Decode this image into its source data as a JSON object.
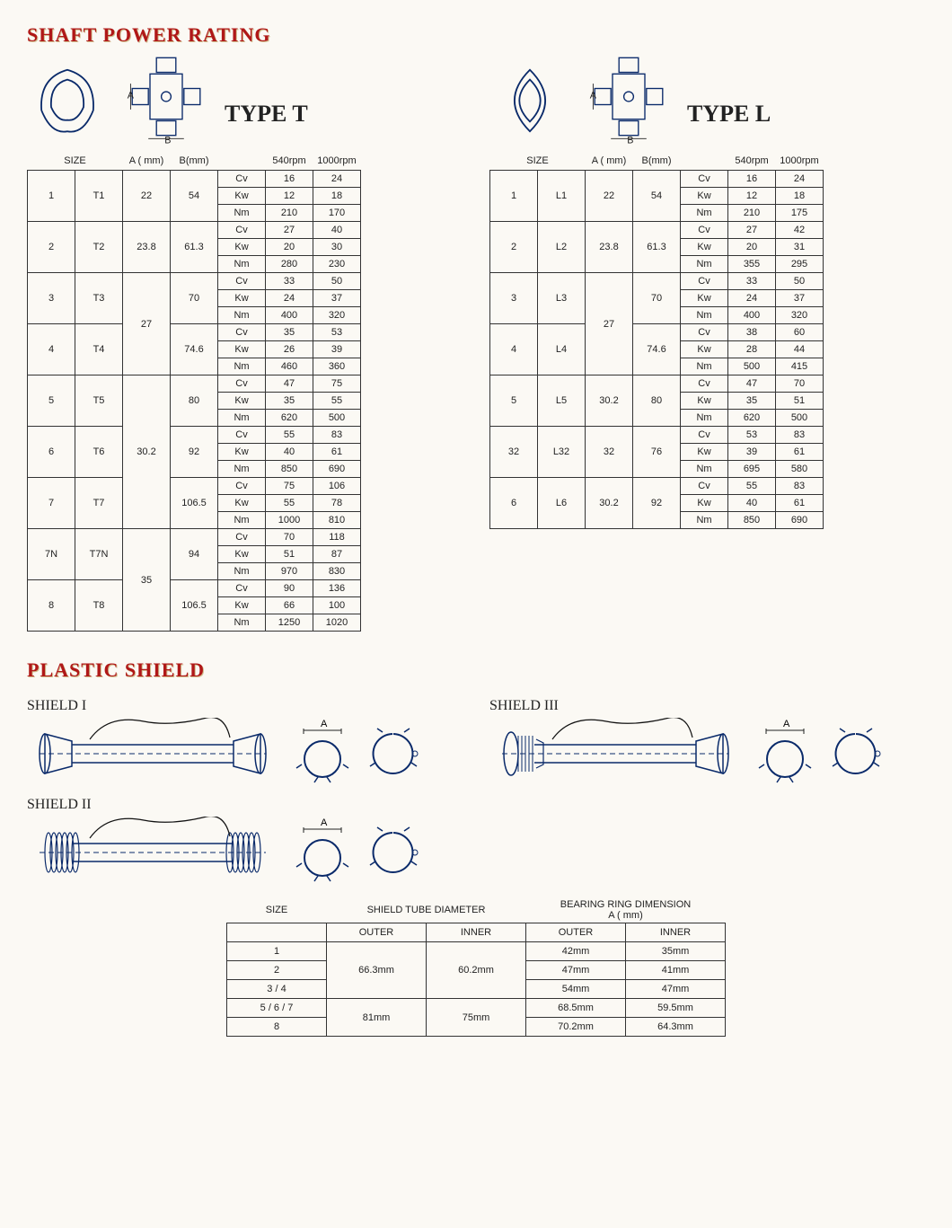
{
  "colors": {
    "title": "#b01818",
    "line": "#0a2a6a",
    "bg": "#fbf9f4"
  },
  "section1": {
    "title": "SHAFT POWER RATING",
    "typeLabels": {
      "t": "TYPE T",
      "l": "TYPE L"
    },
    "headers": {
      "size": "SIZE",
      "a": "A ( mm)",
      "b": "B(mm)",
      "r1": "540rpm",
      "r2": "1000rpm"
    },
    "units": [
      "Cv",
      "Kw",
      "Nm"
    ],
    "typeT": [
      {
        "size": "1",
        "code": "T1",
        "a": "22",
        "b": "54",
        "vals": [
          [
            "16",
            "24"
          ],
          [
            "12",
            "18"
          ],
          [
            "210",
            "170"
          ]
        ]
      },
      {
        "size": "2",
        "code": "T2",
        "a": "23.8",
        "b": "61.3",
        "vals": [
          [
            "27",
            "40"
          ],
          [
            "20",
            "30"
          ],
          [
            "280",
            "230"
          ]
        ]
      },
      {
        "size": "3",
        "code": "T3",
        "a": "27",
        "b": "70",
        "vals": [
          [
            "33",
            "50"
          ],
          [
            "24",
            "37"
          ],
          [
            "400",
            "320"
          ]
        ]
      },
      {
        "size": "4",
        "code": "T4",
        "a": "27",
        "b": "74.6",
        "vals": [
          [
            "35",
            "53"
          ],
          [
            "26",
            "39"
          ],
          [
            "460",
            "360"
          ]
        ]
      },
      {
        "size": "5",
        "code": "T5",
        "a": "30.2",
        "b": "80",
        "vals": [
          [
            "47",
            "75"
          ],
          [
            "35",
            "55"
          ],
          [
            "620",
            "500"
          ]
        ]
      },
      {
        "size": "6",
        "code": "T6",
        "a": "30.2",
        "b": "92",
        "vals": [
          [
            "55",
            "83"
          ],
          [
            "40",
            "61"
          ],
          [
            "850",
            "690"
          ]
        ]
      },
      {
        "size": "7",
        "code": "T7",
        "a": "30.2",
        "b": "106.5",
        "vals": [
          [
            "75",
            "106"
          ],
          [
            "55",
            "78"
          ],
          [
            "1000",
            "810"
          ]
        ]
      },
      {
        "size": "7N",
        "code": "T7N",
        "a": "35",
        "b": "94",
        "vals": [
          [
            "70",
            "118"
          ],
          [
            "51",
            "87"
          ],
          [
            "970",
            "830"
          ]
        ]
      },
      {
        "size": "8",
        "code": "T8",
        "a": "35",
        "b": "106.5",
        "vals": [
          [
            "90",
            "136"
          ],
          [
            "66",
            "100"
          ],
          [
            "1250",
            "1020"
          ]
        ]
      }
    ],
    "mergeA_T": [
      [
        0,
        1
      ],
      [
        1,
        1
      ],
      [
        2,
        2
      ],
      [
        4,
        3
      ],
      [
        7,
        2
      ]
    ],
    "typeL": [
      {
        "size": "1",
        "code": "L1",
        "a": "22",
        "b": "54",
        "vals": [
          [
            "16",
            "24"
          ],
          [
            "12",
            "18"
          ],
          [
            "210",
            "175"
          ]
        ]
      },
      {
        "size": "2",
        "code": "L2",
        "a": "23.8",
        "b": "61.3",
        "vals": [
          [
            "27",
            "42"
          ],
          [
            "20",
            "31"
          ],
          [
            "355",
            "295"
          ]
        ]
      },
      {
        "size": "3",
        "code": "L3",
        "a": "27",
        "b": "70",
        "vals": [
          [
            "33",
            "50"
          ],
          [
            "24",
            "37"
          ],
          [
            "400",
            "320"
          ]
        ]
      },
      {
        "size": "4",
        "code": "L4",
        "a": "27",
        "b": "74.6",
        "vals": [
          [
            "38",
            "60"
          ],
          [
            "28",
            "44"
          ],
          [
            "500",
            "415"
          ]
        ]
      },
      {
        "size": "5",
        "code": "L5",
        "a": "30.2",
        "b": "80",
        "vals": [
          [
            "47",
            "70"
          ],
          [
            "35",
            "51"
          ],
          [
            "620",
            "500"
          ]
        ]
      },
      {
        "size": "32",
        "code": "L32",
        "a": "32",
        "b": "76",
        "vals": [
          [
            "53",
            "83"
          ],
          [
            "39",
            "61"
          ],
          [
            "695",
            "580"
          ]
        ]
      },
      {
        "size": "6",
        "code": "L6",
        "a": "30.2",
        "b": "92",
        "vals": [
          [
            "55",
            "83"
          ],
          [
            "40",
            "61"
          ],
          [
            "850",
            "690"
          ]
        ]
      }
    ],
    "mergeA_L": [
      [
        0,
        1
      ],
      [
        1,
        1
      ],
      [
        2,
        2
      ],
      [
        4,
        1
      ],
      [
        5,
        1
      ],
      [
        6,
        1
      ]
    ]
  },
  "section2": {
    "title": "PLASTIC SHIELD",
    "labels": {
      "s1": "SHIELD I",
      "s2": "SHIELD II",
      "s3": "SHIELD III"
    },
    "table": {
      "h_size": "SIZE",
      "h_tube": "SHIELD TUBE DIAMETER",
      "h_ring": "BEARING RING DIMENSION\nA ( mm)",
      "sub": {
        "outer": "OUTER",
        "inner": "INNER"
      },
      "rows": [
        {
          "size": "1",
          "tube_o": "66.3mm",
          "tube_i": "60.2mm",
          "ring_o": "42mm",
          "ring_i": "35mm"
        },
        {
          "size": "2",
          "tube_o": "66.3mm",
          "tube_i": "60.2mm",
          "ring_o": "47mm",
          "ring_i": "41mm"
        },
        {
          "size": "3 / 4",
          "tube_o": "66.3mm",
          "tube_i": "60.2mm",
          "ring_o": "54mm",
          "ring_i": "47mm"
        },
        {
          "size": "5 / 6 / 7",
          "tube_o": "81mm",
          "tube_i": "75mm",
          "ring_o": "68.5mm",
          "ring_i": "59.5mm"
        },
        {
          "size": "8",
          "tube_o": "81mm",
          "tube_i": "75mm",
          "ring_o": "70.2mm",
          "ring_i": "64.3mm"
        }
      ],
      "mergeTube": [
        [
          0,
          3
        ],
        [
          3,
          2
        ]
      ]
    }
  }
}
